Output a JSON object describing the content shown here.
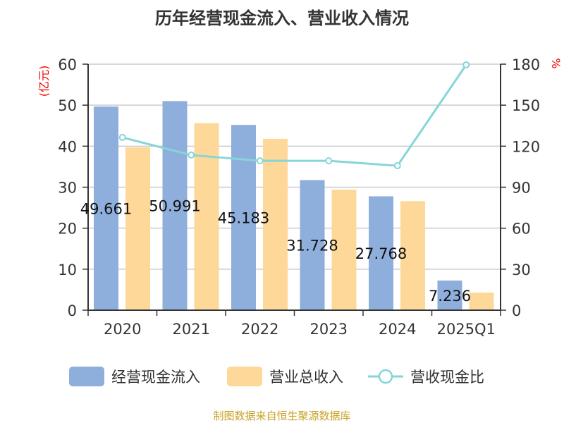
{
  "chart_data": {
    "type": "bar",
    "title": "历年经营现金流入、营业收入情况",
    "categories": [
      "2020",
      "2021",
      "2022",
      "2023",
      "2024",
      "2025Q1"
    ],
    "y_left": {
      "label": "(亿元)",
      "range": [
        0,
        60
      ],
      "ticks": [
        0,
        10,
        20,
        30,
        40,
        50,
        60
      ]
    },
    "y_right": {
      "label": "%",
      "range": [
        0,
        180
      ],
      "ticks": [
        0,
        30,
        60,
        90,
        120,
        150,
        180
      ]
    },
    "grid": true,
    "legend_position": "bottom",
    "series": [
      {
        "name": "经营现金流入",
        "type": "bar",
        "axis": "left",
        "color": "#8eaedb",
        "values": [
          49.661,
          50.991,
          45.183,
          31.728,
          27.768,
          7.236
        ],
        "labels": [
          "49.661",
          "50.991",
          "45.183",
          "31.728",
          "27.768",
          "7.236"
        ]
      },
      {
        "name": "营业总收入",
        "type": "bar",
        "axis": "left",
        "color": "#fdd899",
        "values": [
          39.7,
          45.6,
          41.8,
          29.4,
          26.6,
          4.3
        ]
      },
      {
        "name": "营收现金比",
        "type": "line",
        "axis": "right",
        "color": "#86d5d9",
        "values": [
          126.4,
          113.5,
          109.3,
          109.3,
          105.7,
          179.5
        ]
      }
    ],
    "source": "制图数据来自恒生聚源数据库"
  }
}
